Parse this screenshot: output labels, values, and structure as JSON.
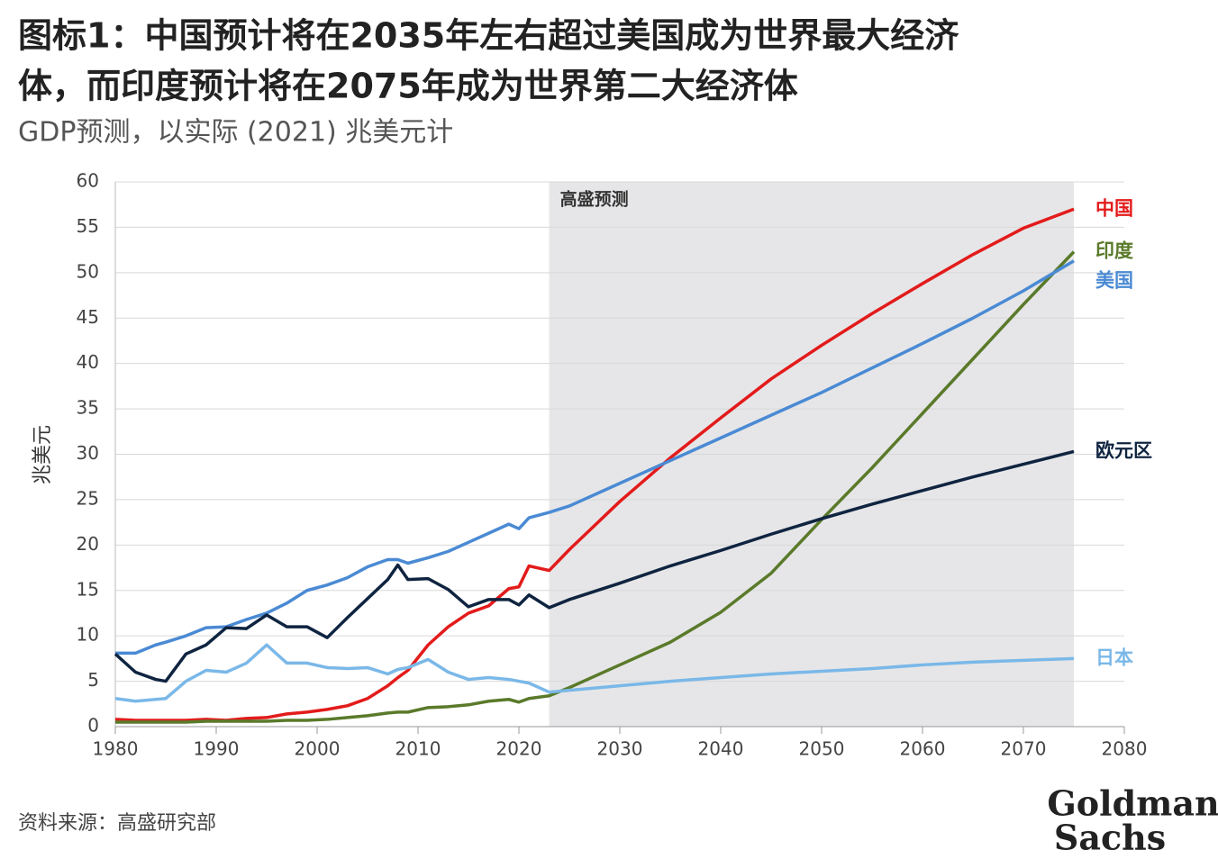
{
  "chart_data": {
    "type": "line",
    "title": [
      "图标1：中国预计将在2035年左右超过美国成为世界最大经济",
      "体，而印度预计将在2075年成为世界第二大经济体"
    ],
    "subtitle": "GDP预测，以实际 (2021) 兆美元计",
    "y_label": "兆美元",
    "source": "资料来源：高盛研究部",
    "logo": [
      "Goldman",
      "Sachs"
    ],
    "shaded_region": {
      "label": "高盛预测",
      "xlim": [
        2023,
        2075
      ]
    },
    "xlim": [
      1980,
      2080
    ],
    "xticks": [
      1980,
      1990,
      2000,
      2010,
      2020,
      2030,
      2040,
      2050,
      2060,
      2070,
      2080
    ],
    "ylim": [
      0,
      60
    ],
    "yticks": [
      0,
      5,
      10,
      15,
      20,
      25,
      30,
      35,
      40,
      45,
      50,
      55,
      60
    ],
    "grid": true,
    "x": [
      1980,
      1982,
      1984,
      1985,
      1987,
      1989,
      1991,
      1993,
      1995,
      1997,
      1999,
      2001,
      2003,
      2005,
      2007,
      2008,
      2009,
      2011,
      2013,
      2015,
      2017,
      2019,
      2020,
      2021,
      2023,
      2025,
      2030,
      2035,
      2040,
      2045,
      2050,
      2055,
      2060,
      2065,
      2070,
      2075
    ],
    "series": [
      {
        "name": "中国",
        "color": "#e31b1b",
        "values": [
          0.8,
          0.7,
          0.7,
          0.7,
          0.7,
          0.8,
          0.7,
          0.9,
          1.0,
          1.4,
          1.6,
          1.9,
          2.3,
          3.1,
          4.5,
          5.4,
          6.2,
          9.0,
          11.0,
          12.5,
          13.3,
          15.2,
          15.4,
          17.7,
          17.2,
          19.5,
          24.8,
          29.6,
          34.0,
          38.3,
          42.0,
          45.5,
          48.8,
          52.0,
          54.9,
          57.0
        ]
      },
      {
        "name": "印度",
        "color": "#5a7a2a",
        "values": [
          0.5,
          0.5,
          0.5,
          0.5,
          0.5,
          0.6,
          0.6,
          0.6,
          0.6,
          0.7,
          0.7,
          0.8,
          1.0,
          1.2,
          1.5,
          1.6,
          1.6,
          2.1,
          2.2,
          2.4,
          2.8,
          3.0,
          2.7,
          3.1,
          3.4,
          4.3,
          6.8,
          9.3,
          12.6,
          16.9,
          22.8,
          28.5,
          34.5,
          40.5,
          46.5,
          52.3
        ]
      },
      {
        "name": "美国",
        "color": "#4a8ad4",
        "values": [
          8.1,
          8.1,
          9.0,
          9.3,
          10.0,
          10.9,
          11.0,
          11.8,
          12.5,
          13.6,
          15.0,
          15.6,
          16.4,
          17.6,
          18.4,
          18.4,
          18.0,
          18.6,
          19.3,
          20.3,
          21.3,
          22.3,
          21.8,
          23.0,
          23.6,
          24.3,
          26.8,
          29.3,
          31.8,
          34.3,
          36.8,
          39.5,
          42.2,
          45.0,
          48.0,
          51.3
        ]
      },
      {
        "name": "欧元区",
        "color": "#0f2440",
        "values": [
          8.0,
          6.0,
          5.2,
          5.0,
          8.0,
          9.0,
          10.9,
          10.8,
          12.3,
          11.0,
          11.0,
          9.8,
          12.0,
          14.1,
          16.2,
          17.8,
          16.2,
          16.3,
          15.1,
          13.2,
          14.0,
          14.0,
          13.4,
          14.5,
          13.1,
          14.0,
          15.8,
          17.7,
          19.4,
          21.2,
          22.9,
          24.5,
          26.0,
          27.5,
          28.9,
          30.3
        ]
      },
      {
        "name": "日本",
        "color": "#7ab8e8",
        "values": [
          3.1,
          2.8,
          3.0,
          3.1,
          5.0,
          6.2,
          6.0,
          7.0,
          9.0,
          7.0,
          7.0,
          6.5,
          6.4,
          6.5,
          5.8,
          6.3,
          6.5,
          7.4,
          6.0,
          5.2,
          5.4,
          5.2,
          5.0,
          4.8,
          3.8,
          4.0,
          4.5,
          5.0,
          5.4,
          5.8,
          6.1,
          6.4,
          6.8,
          7.1,
          7.3,
          7.5
        ]
      }
    ]
  }
}
